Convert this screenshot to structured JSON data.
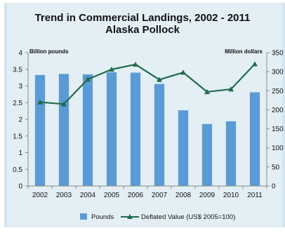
{
  "chart_data": {
    "type": "bar",
    "title": "Trend in Commercial Landings, 2002 - 2011",
    "subtitle": "Alaska Pollock",
    "ylabel_left": "Billion pounds",
    "ylabel_right": "Million dollars",
    "categories": [
      "2002",
      "2003",
      "2004",
      "2005",
      "2006",
      "2007",
      "2008",
      "2009",
      "2010",
      "2011"
    ],
    "ylim_left": [
      0,
      4
    ],
    "ylim_right": [
      0,
      350
    ],
    "yticks_left": [
      "0",
      "0.5",
      "1",
      "1.5",
      "2",
      "2.5",
      "3",
      "3.5",
      "4"
    ],
    "yticks_right": [
      "0",
      "50",
      "100",
      "150",
      "200",
      "250",
      "300",
      "350"
    ],
    "series": [
      {
        "name": "Pounds",
        "type": "bar",
        "axis": "left",
        "color": "#5b9bd5",
        "values": [
          3.33,
          3.36,
          3.35,
          3.41,
          3.4,
          3.06,
          2.27,
          1.86,
          1.94,
          2.81
        ]
      },
      {
        "name": "Deflated Value (US$ 2005=100)",
        "type": "line",
        "axis": "right",
        "color": "#1f6b4b",
        "values": [
          220,
          215,
          280,
          306,
          319,
          279,
          298,
          247,
          254,
          320
        ]
      }
    ],
    "grid": false,
    "legend": "bottom"
  }
}
